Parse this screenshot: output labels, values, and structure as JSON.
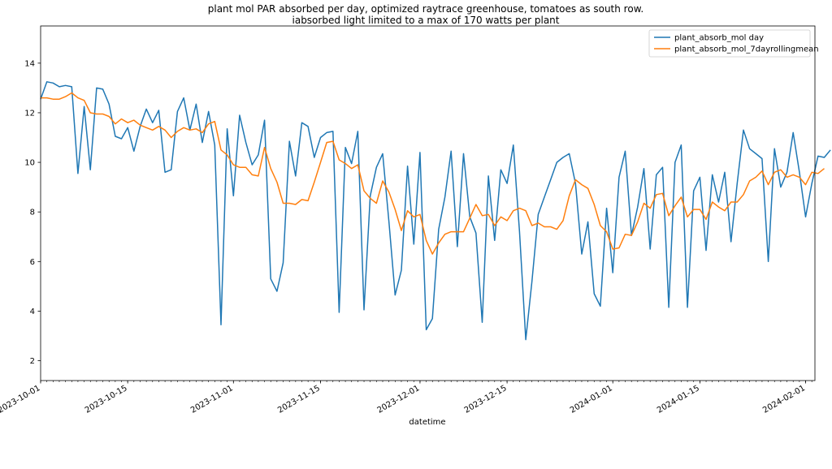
{
  "chart_data": {
    "type": "line",
    "title": "plant mol PAR absorbed per day, optimized raytrace greenhouse, tomatoes as south row.",
    "subtitle": "iabsorbed light limited to a max of 170 watts per plant",
    "xlabel": "datetime",
    "ylabel": "",
    "xlim": [
      0,
      124.5
    ],
    "ylim": [
      1.2,
      15.5
    ],
    "yticks": [
      2,
      4,
      6,
      8,
      10,
      12,
      14
    ],
    "xticks": [
      {
        "day": 0,
        "label": "2023-10-01"
      },
      {
        "day": 14,
        "label": "2023-10-15"
      },
      {
        "day": 31,
        "label": "2023-11-01"
      },
      {
        "day": 45,
        "label": "2023-11-15"
      },
      {
        "day": 61,
        "label": "2023-12-01"
      },
      {
        "day": 75,
        "label": "2023-12-15"
      },
      {
        "day": 92,
        "label": "2024-01-01"
      },
      {
        "day": 106,
        "label": "2024-01-15"
      },
      {
        "day": 123,
        "label": "2024-02-01"
      }
    ],
    "grid": false,
    "legend_position": "top-right",
    "series": [
      {
        "name": "plant_absorb_mol day",
        "color": "#1f77b4",
        "values": [
          12.55,
          13.25,
          13.2,
          13.05,
          13.1,
          13.05,
          9.55,
          12.25,
          9.7,
          13.0,
          12.95,
          12.35,
          11.05,
          10.95,
          11.4,
          10.45,
          11.45,
          12.15,
          11.6,
          12.1,
          9.6,
          9.7,
          12.05,
          12.6,
          11.3,
          12.35,
          10.8,
          12.05,
          10.7,
          3.45,
          11.35,
          8.65,
          11.9,
          10.8,
          9.9,
          10.3,
          11.7,
          5.3,
          4.8,
          5.95,
          10.85,
          9.45,
          11.6,
          11.45,
          10.2,
          11.0,
          11.2,
          11.25,
          3.95,
          10.6,
          9.95,
          11.25,
          4.05,
          8.65,
          9.8,
          10.35,
          7.6,
          4.65,
          5.65,
          9.85,
          6.7,
          10.4,
          3.25,
          3.7,
          7.3,
          8.6,
          10.45,
          6.6,
          10.35,
          7.8,
          7.15,
          3.55,
          9.45,
          6.85,
          9.7,
          9.15,
          10.7,
          7.2,
          2.85,
          5.2,
          7.9,
          8.6,
          9.3,
          10.0,
          10.2,
          10.35,
          9.15,
          6.3,
          7.6,
          4.7,
          4.2,
          8.15,
          5.55,
          9.4,
          10.45,
          7.05,
          8.2,
          9.75,
          6.5,
          9.5,
          9.8,
          4.15,
          10.0,
          10.7,
          4.15,
          8.85,
          9.4,
          6.45,
          9.5,
          8.4,
          9.6,
          6.8,
          9.15,
          11.3,
          10.55,
          10.35,
          10.15,
          6.0,
          10.55,
          9.0,
          9.6,
          11.2,
          9.6,
          7.8,
          9.15,
          10.25,
          10.2,
          10.5
        ]
      },
      {
        "name": "plant_absorb_mol_7dayrollingmean",
        "color": "#ff7f0e",
        "values": [
          12.6,
          12.6,
          12.55,
          12.55,
          12.65,
          12.8,
          12.6,
          12.5,
          12.0,
          11.95,
          11.95,
          11.85,
          11.55,
          11.75,
          11.6,
          11.7,
          11.5,
          11.4,
          11.3,
          11.45,
          11.3,
          11.0,
          11.25,
          11.4,
          11.3,
          11.35,
          11.2,
          11.55,
          11.65,
          10.5,
          10.3,
          9.9,
          9.8,
          9.8,
          9.5,
          9.45,
          10.6,
          9.75,
          9.2,
          8.35,
          8.35,
          8.3,
          8.5,
          8.45,
          9.2,
          10.0,
          10.8,
          10.85,
          10.1,
          9.95,
          9.75,
          9.9,
          8.85,
          8.55,
          8.35,
          9.25,
          8.8,
          8.1,
          7.25,
          8.05,
          7.8,
          7.9,
          6.85,
          6.3,
          6.75,
          7.1,
          7.2,
          7.2,
          7.2,
          7.75,
          8.3,
          7.85,
          7.9,
          7.45,
          7.8,
          7.65,
          8.05,
          8.15,
          8.05,
          7.45,
          7.55,
          7.4,
          7.4,
          7.3,
          7.65,
          8.65,
          9.3,
          9.1,
          8.95,
          8.3,
          7.45,
          7.2,
          6.5,
          6.55,
          7.1,
          7.05,
          7.6,
          8.35,
          8.15,
          8.7,
          8.75,
          7.85,
          8.25,
          8.6,
          7.8,
          8.1,
          8.1,
          7.7,
          8.4,
          8.2,
          8.05,
          8.4,
          8.4,
          8.7,
          9.25,
          9.4,
          9.65,
          9.1,
          9.6,
          9.7,
          9.4,
          9.5,
          9.4,
          9.1,
          9.6,
          9.55,
          9.75
        ]
      }
    ]
  }
}
